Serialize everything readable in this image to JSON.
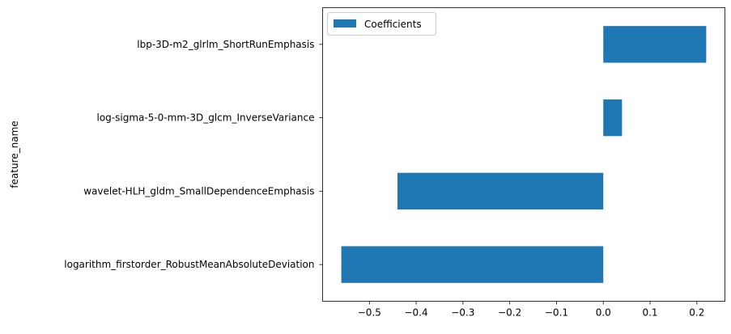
{
  "chart_data": {
    "type": "bar",
    "orientation": "horizontal",
    "title": "",
    "xlabel": "",
    "ylabel": "feature_name",
    "categories": [
      "logarithm_firstorder_RobustMeanAbsoluteDeviation",
      "wavelet-HLH_gldm_SmallDependenceEmphasis",
      "log-sigma-5-0-mm-3D_glcm_InverseVariance",
      "lbp-3D-m2_glrlm_ShortRunEmphasis"
    ],
    "series": [
      {
        "name": "Coefficients",
        "values": [
          -0.56,
          -0.44,
          0.04,
          0.22
        ],
        "color": "#1f77b4"
      }
    ],
    "xlim": [
      -0.6,
      0.26
    ],
    "xticks": [
      -0.5,
      -0.4,
      -0.3,
      -0.2,
      -0.1,
      0.0,
      0.1,
      0.2
    ],
    "xtick_labels": [
      "−0.5",
      "−0.4",
      "−0.3",
      "−0.2",
      "−0.1",
      "0.0",
      "0.1",
      "0.2"
    ],
    "grid": false,
    "legend_position": "top-left"
  }
}
